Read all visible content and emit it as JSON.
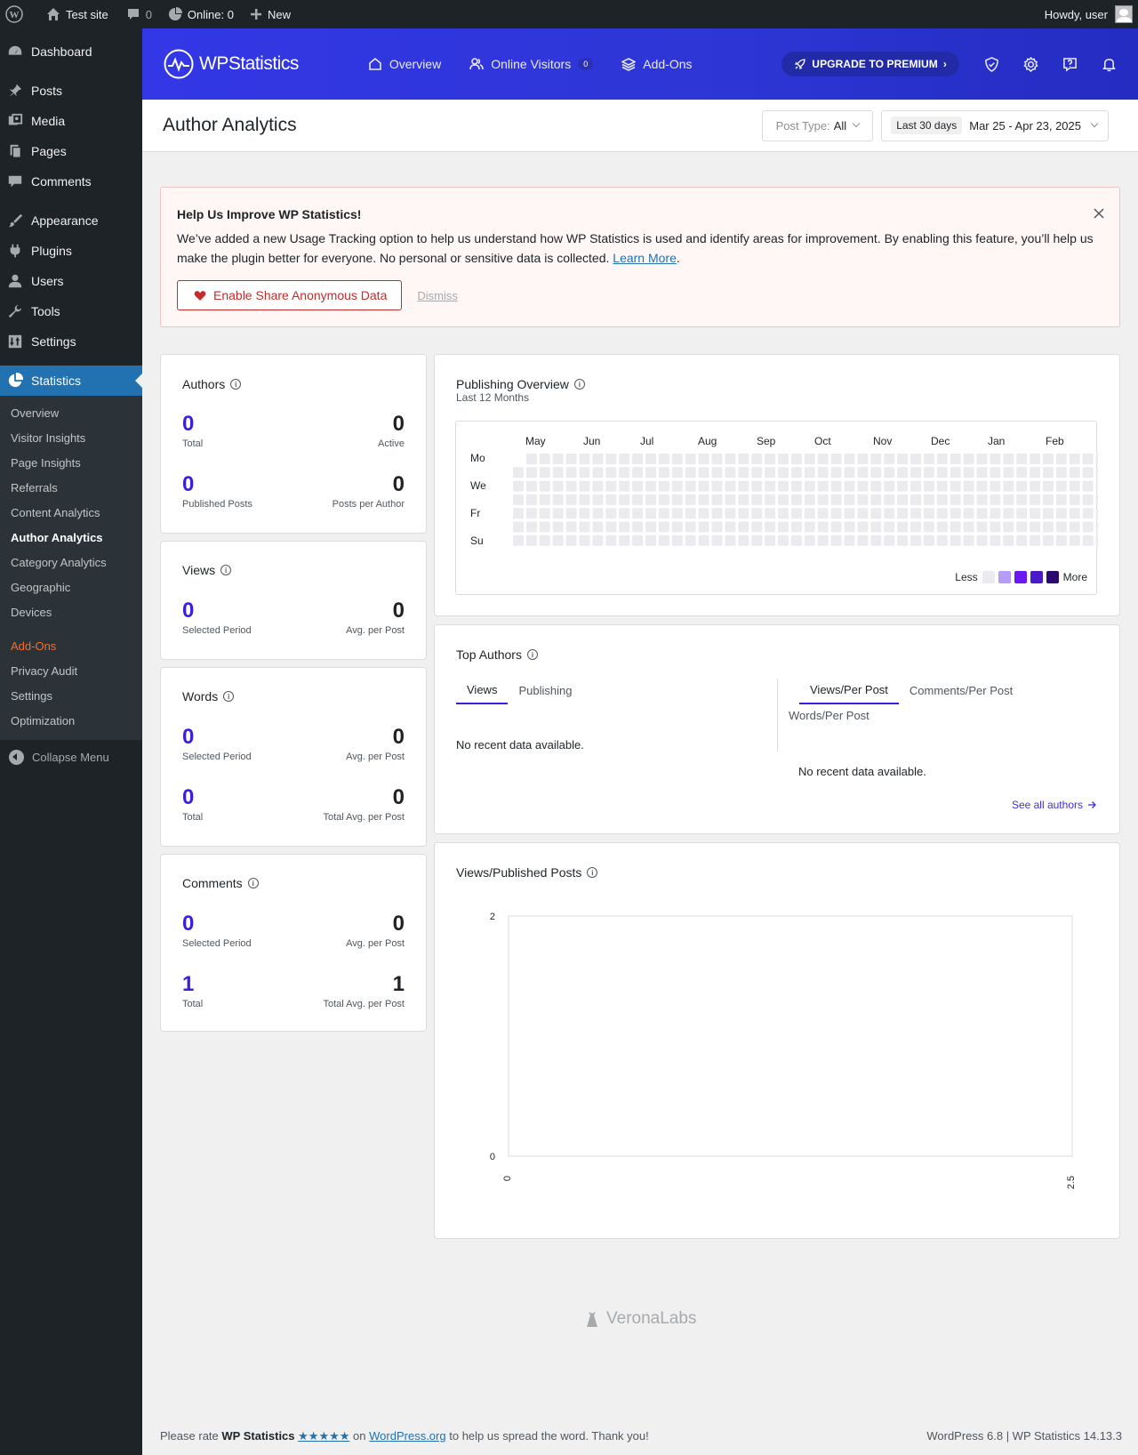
{
  "adminbar": {
    "site": "Test site",
    "comments_count": "0",
    "online": "Online: 0",
    "new": "New",
    "howdy": "Howdy, user"
  },
  "sidebar": {
    "dashboard": "Dashboard",
    "posts": "Posts",
    "media": "Media",
    "pages": "Pages",
    "comments": "Comments",
    "appearance": "Appearance",
    "plugins": "Plugins",
    "users": "Users",
    "tools": "Tools",
    "settings": "Settings",
    "statistics": "Statistics",
    "submenu": [
      "Overview",
      "Visitor Insights",
      "Page Insights",
      "Referrals",
      "Content Analytics",
      "Author Analytics",
      "Category Analytics",
      "Geographic",
      "Devices"
    ],
    "submenu2": [
      "Add-Ons",
      "Privacy Audit",
      "Settings",
      "Optimization"
    ],
    "collapse": "Collapse Menu"
  },
  "header": {
    "logo": "WPStatistics",
    "nav": [
      "Overview",
      "Online Visitors",
      "Add-Ons"
    ],
    "online_badge": "0",
    "premium": "UPGRADE TO PREMIUM"
  },
  "titlebar": {
    "title": "Author Analytics",
    "post_type_label": "Post Type:",
    "post_type_value": "All",
    "date_chip": "Last 30 days",
    "date_range": "Mar 25 - Apr 23, 2025"
  },
  "notice": {
    "title": "Help Us Improve WP Statistics!",
    "body": "We’ve added a new Usage Tracking option to help us understand how WP Statistics is used and identify areas for improvement. By enabling this feature, you’ll help us make the plugin better for everyone. No personal or sensitive data is collected.",
    "learn_more": "Learn More",
    "button": "Enable Share Anonymous Data",
    "dismiss": "Dismiss"
  },
  "authors": {
    "title": "Authors",
    "total": "0",
    "total_label": "Total",
    "active": "0",
    "active_label": "Active",
    "published": "0",
    "published_label": "Published Posts",
    "per_author": "0",
    "per_author_label": "Posts per Author"
  },
  "views": {
    "title": "Views",
    "selected": "0",
    "selected_label": "Selected Period",
    "avg": "0",
    "avg_label": "Avg. per Post"
  },
  "words": {
    "title": "Words",
    "selected": "0",
    "selected_label": "Selected Period",
    "avg": "0",
    "avg_label": "Avg. per Post",
    "total": "0",
    "total_label": "Total",
    "total_avg": "0",
    "total_avg_label": "Total Avg. per Post"
  },
  "comments": {
    "title": "Comments",
    "selected": "0",
    "selected_label": "Selected Period",
    "avg": "0",
    "avg_label": "Avg. per Post",
    "total": "1",
    "total_label": "Total",
    "total_avg": "1",
    "total_avg_label": "Total Avg. per Post"
  },
  "publishing": {
    "title": "Publishing Overview",
    "subtitle": "Last 12 Months",
    "months": [
      "May",
      "Jun",
      "Jul",
      "Aug",
      "Sep",
      "Oct",
      "Nov",
      "Dec",
      "Jan",
      "Feb"
    ],
    "days": [
      "Mo",
      "We",
      "Fr",
      "Su"
    ],
    "less": "Less",
    "more": "More",
    "legend_colors": [
      "#ebebef",
      "#b59cf7",
      "#6a19f5",
      "#4c19c9",
      "#2a0a6e"
    ]
  },
  "top_authors": {
    "title": "Top Authors",
    "tabs_left": [
      "Views",
      "Publishing"
    ],
    "tabs_right": [
      "Views/Per Post",
      "Comments/Per Post",
      "Words/Per Post"
    ],
    "no_data": "No recent data available.",
    "see_all": "See all authors"
  },
  "chart_data": {
    "type": "scatter",
    "title": "Views/Published Posts",
    "xlim": [
      0,
      2.5
    ],
    "ylim": [
      0,
      2
    ],
    "x_ticks": [
      "0",
      "2.5"
    ],
    "y_ticks": [
      "2",
      "0"
    ],
    "series": []
  },
  "brand": "VeronaLabs",
  "footer": {
    "rate_pre": "Please rate",
    "plugin": "WP Statistics",
    "stars": "★★★★★",
    "on": "on",
    "wporg": "WordPress.org",
    "rate_post": "to help us spread the word. Thank you!",
    "version": "WordPress 6.8 | WP Statistics 14.13.3"
  }
}
